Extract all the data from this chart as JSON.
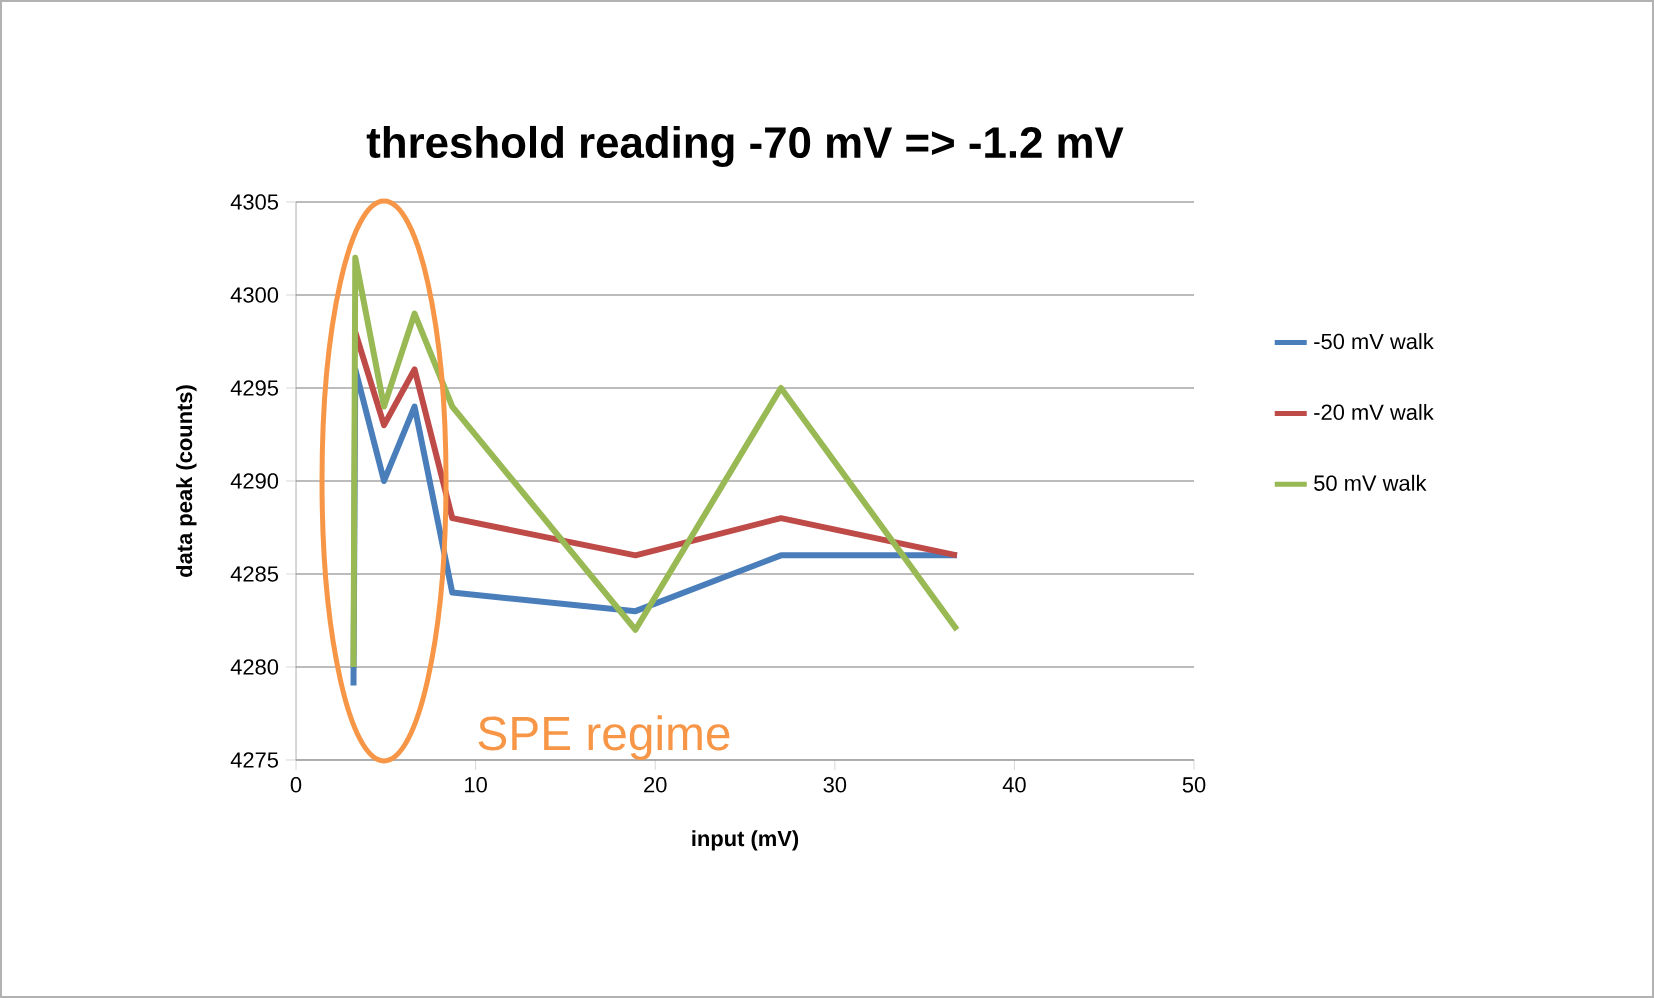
{
  "chart_data": {
    "type": "line",
    "title": "threshold reading -70 mV => -1.2 mV",
    "xlabel": "input (mV)",
    "ylabel": "data peak (counts)",
    "x": [
      3.2,
      3.3,
      4.9,
      6.6,
      8.7,
      18.9,
      27,
      36.8
    ],
    "series": [
      {
        "name": "-50 mV walk",
        "color": "#4a7ebb",
        "values": [
          4279,
          4296,
          4290,
          4294,
          4284,
          4283,
          4286,
          4286
        ]
      },
      {
        "name": "-20 mV walk",
        "color": "#be4b48",
        "x": [
          3.3,
          4.9,
          6.6,
          8.7,
          18.9,
          27,
          36.8
        ],
        "values": [
          4298,
          4293,
          4296,
          4288,
          4286,
          4288,
          4286
        ]
      },
      {
        "name": "50 mV walk",
        "color": "#98b954",
        "values": [
          4280,
          4302,
          4294,
          4299,
          4294,
          4282,
          4295,
          4282
        ]
      }
    ],
    "xlim": [
      0,
      50
    ],
    "xticks": [
      0,
      10,
      20,
      30,
      40,
      50
    ],
    "ylim": [
      4275,
      4305
    ],
    "yticks": [
      4275,
      4280,
      4285,
      4290,
      4295,
      4300,
      4305
    ],
    "grid": "y",
    "legend": "right",
    "marker": "none",
    "line_style": "solid",
    "annotations": [
      "SPE regime"
    ]
  }
}
